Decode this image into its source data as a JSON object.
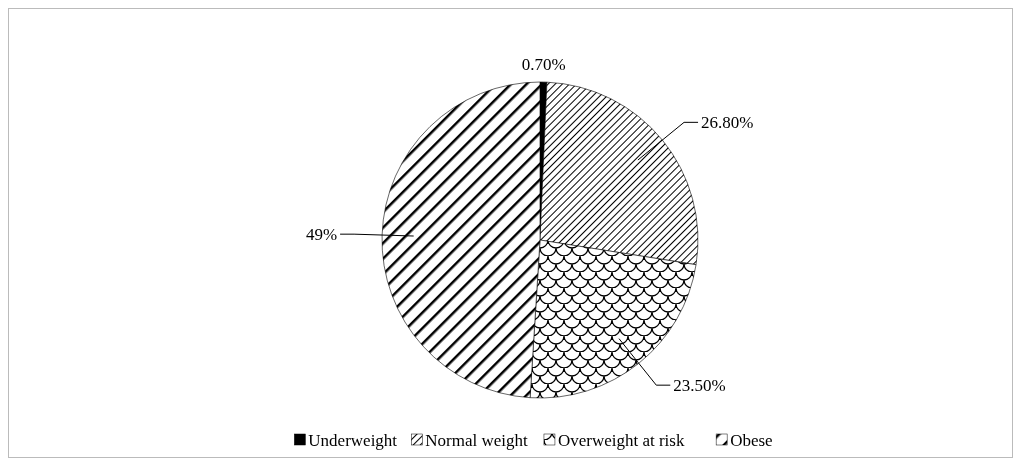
{
  "chart_data": {
    "type": "pie",
    "categories": [
      "Underweight",
      "Normal weight",
      "Overweight at risk",
      "Obese"
    ],
    "values": [
      0.7,
      26.8,
      23.5,
      49
    ],
    "value_labels": [
      "0.70%",
      "26.80%",
      "23.50%",
      "49%"
    ],
    "colors": [
      "#000000",
      "#000000",
      "#000000",
      "#000000"
    ],
    "legend": "bottom"
  }
}
